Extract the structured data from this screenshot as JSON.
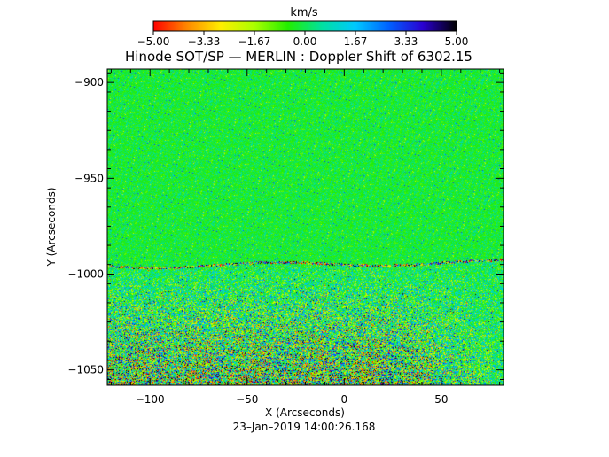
{
  "colorbar": {
    "unit": "km/s",
    "ticks": [
      "−5.00",
      "−3.33",
      "−1.67",
      "0.00",
      "1.67",
      "3.33",
      "5.00"
    ],
    "min": -5.0,
    "max": 5.0,
    "colormap": [
      "#ff0000",
      "#ff8800",
      "#ffee00",
      "#aaff00",
      "#22ee00",
      "#00e0a0",
      "#00c8ff",
      "#0060ff",
      "#2a00d0",
      "#000000"
    ]
  },
  "title": "Hinode SOT/SP — MERLIN : Doppler Shift of 6302.15",
  "plot": {
    "x_axis_label": "X (Arcseconds)",
    "y_axis_label": "Y (Arcseconds)",
    "x_ticks": [
      "−100",
      "−50",
      "0",
      "50"
    ],
    "y_ticks": [
      "−900",
      "−950",
      "−1000",
      "−1050"
    ],
    "x_range": [
      -122,
      82
    ],
    "y_range": [
      -1058,
      -893
    ],
    "limb_y_left": -995,
    "limb_y_right": -993
  },
  "timestamp": "23–Jan–2019 14:00:26.168"
}
